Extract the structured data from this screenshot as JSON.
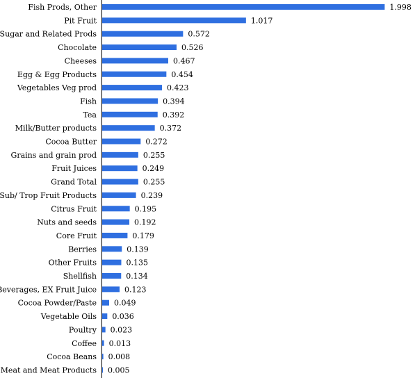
{
  "chart_data": {
    "type": "bar",
    "orientation": "horizontal",
    "title": "",
    "xlabel": "",
    "ylabel": "",
    "bar_color": "#2f6fe0",
    "axis_color": "#000000",
    "grid": false,
    "legend": "none",
    "xlim": [
      0,
      2.06
    ],
    "categories": [
      "Fish Prods, Other",
      "Pit Fruit",
      "Sugar and Related Prods",
      "Chocolate",
      "Cheeses",
      "Egg & Egg Products",
      "Vegetables Veg prod",
      "Fish",
      "Tea",
      "Milk/Butter products",
      "Cocoa Butter",
      "Grains and grain prod",
      "Fruit Juices",
      "Grand Total",
      "Sub/ Trop Fruit Products",
      "Citrus Fruit",
      "Nuts and seeds",
      "Core Fruit",
      "Berries",
      "Other Fruits",
      "Shellfish",
      "Beverages, EX Fruit Juice",
      "Cocoa Powder/Paste",
      "Vegetable Oils",
      "Poultry",
      "Coffee",
      "Cocoa Beans",
      "Red Meat and Meat Products"
    ],
    "values": [
      1.998,
      1.017,
      0.572,
      0.526,
      0.467,
      0.454,
      0.423,
      0.394,
      0.392,
      0.372,
      0.272,
      0.255,
      0.249,
      0.255,
      0.239,
      0.195,
      0.192,
      0.179,
      0.139,
      0.135,
      0.134,
      0.123,
      0.049,
      0.036,
      0.023,
      0.013,
      0.008,
      0.005
    ],
    "value_labels": [
      "1.998",
      "1.017",
      "0.572",
      "0.526",
      "0.467",
      "0.454",
      "0.423",
      "0.394",
      "0.392",
      "0.372",
      "0.272",
      "0.255",
      "0.249",
      "0.255",
      "0.239",
      "0.195",
      "0.192",
      "0.179",
      "0.139",
      "0.135",
      "0.134",
      "0.123",
      "0.049",
      "0.036",
      "0.023",
      "0.013",
      "0.008",
      "0.005"
    ]
  }
}
